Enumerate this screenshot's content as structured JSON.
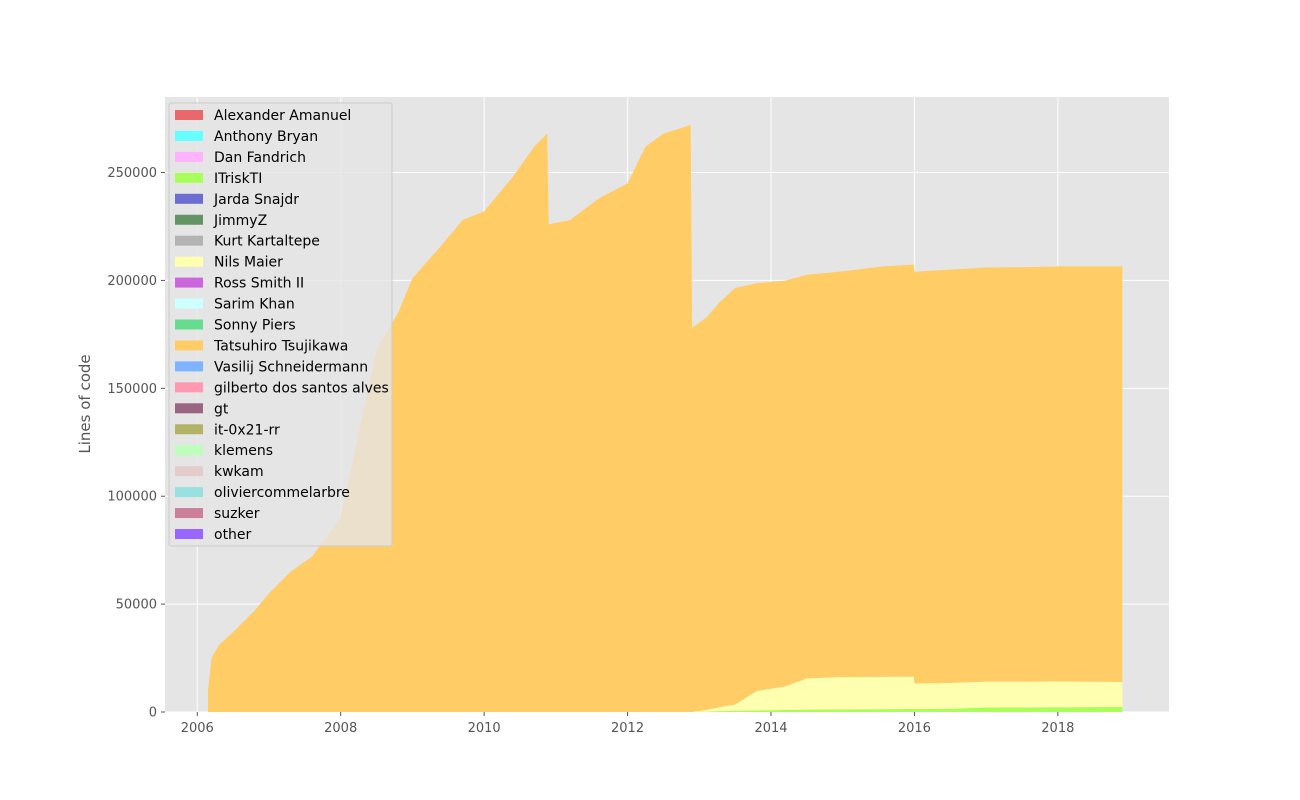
{
  "chart_data": {
    "type": "area",
    "stacked": true,
    "title": "",
    "xlabel": "",
    "ylabel": "Lines of code",
    "xlim": [
      2005.55,
      2019.55
    ],
    "ylim": [
      0,
      285000
    ],
    "xticks": [
      "2006",
      "2008",
      "2010",
      "2012",
      "2014",
      "2016",
      "2018"
    ],
    "yticks": [
      "0",
      "50000",
      "100000",
      "150000",
      "200000",
      "250000"
    ],
    "grid": true,
    "legend_position": "top-left",
    "legend": [
      {
        "name": "Alexander Amanuel",
        "color": "#e8686b"
      },
      {
        "name": "Anthony Bryan",
        "color": "#66ffff"
      },
      {
        "name": "Dan Fandrich",
        "color": "#ffb3ff"
      },
      {
        "name": "ITriskTI",
        "color": "#a8ff5a"
      },
      {
        "name": "Jarda Snajdr",
        "color": "#6c6cd3"
      },
      {
        "name": "JimmyZ",
        "color": "#649466"
      },
      {
        "name": "Kurt Kartaltepe",
        "color": "#b3b3b3"
      },
      {
        "name": "Nils Maier",
        "color": "#ffffb0"
      },
      {
        "name": "Ross Smith II",
        "color": "#cc66dd"
      },
      {
        "name": "Sarim Khan",
        "color": "#ccffff"
      },
      {
        "name": "Sonny Piers",
        "color": "#66dd8e"
      },
      {
        "name": "Tatsuhiro Tsujikawa",
        "color": "#ffcc66"
      },
      {
        "name": "Vasilij Schneidermann",
        "color": "#7fb2ff"
      },
      {
        "name": "gilberto dos santos alves",
        "color": "#ff99b1"
      },
      {
        "name": "gt",
        "color": "#9a6580"
      },
      {
        "name": "it-0x21-rr",
        "color": "#b3b366"
      },
      {
        "name": "klemens",
        "color": "#bbffbb"
      },
      {
        "name": "kwkam",
        "color": "#e4cccc"
      },
      {
        "name": "oliviercommelarbre",
        "color": "#99e1e1"
      },
      {
        "name": "suzker",
        "color": "#cc7f99"
      },
      {
        "name": "other",
        "color": "#9966ff"
      }
    ],
    "x": [
      2006.15,
      2006.2,
      2006.3,
      2006.5,
      2006.8,
      2007.0,
      2007.3,
      2007.6,
      2008.0,
      2008.5,
      2008.8,
      2009.0,
      2009.4,
      2009.7,
      2010.0,
      2010.4,
      2010.7,
      2010.88,
      2010.9,
      2011.2,
      2011.6,
      2012.0,
      2012.25,
      2012.5,
      2012.88,
      2012.9,
      2013.1,
      2013.3,
      2013.5,
      2013.8,
      2014.2,
      2014.5,
      2015.0,
      2015.5,
      2015.99,
      2016.0,
      2016.5,
      2017.0,
      2017.5,
      2018.0,
      2018.9
    ],
    "series": [
      {
        "name": "ITriskTI",
        "values": [
          0,
          0,
          0,
          0,
          0,
          0,
          0,
          0,
          0,
          0,
          0,
          0,
          0,
          0,
          0,
          0,
          0,
          0,
          0,
          0,
          0,
          0,
          0,
          0,
          0,
          0,
          200,
          400,
          500,
          700,
          900,
          1100,
          1200,
          1300,
          1400,
          1400,
          1500,
          2100,
          2100,
          2200,
          2300
        ]
      },
      {
        "name": "Nils Maier",
        "values": [
          0,
          0,
          0,
          0,
          0,
          0,
          0,
          0,
          0,
          0,
          0,
          0,
          0,
          0,
          0,
          0,
          0,
          0,
          0,
          0,
          0,
          0,
          0,
          0,
          0,
          0,
          700,
          2000,
          3000,
          9000,
          11000,
          14500,
          15000,
          15000,
          15000,
          11800,
          12000,
          12000,
          12000,
          12000,
          11600
        ]
      },
      {
        "name": "Tatsuhiro Tsujikawa",
        "values": [
          10000,
          25000,
          31000,
          37000,
          47000,
          55000,
          65000,
          72000,
          90000,
          168000,
          185000,
          201000,
          216000,
          228000,
          232000,
          248000,
          262000,
          268000,
          226000,
          228000,
          238000,
          245000,
          262000,
          268000,
          272000,
          178000,
          182000,
          188000,
          193000,
          189000,
          188000,
          187000,
          188000,
          190000,
          191000,
          190800,
          191500,
          191900,
          192000,
          192300,
          192600
        ]
      },
      {
        "name": "kwkam",
        "values": [
          0,
          0,
          0,
          0,
          0,
          0,
          0,
          0,
          0,
          0,
          0,
          0,
          0,
          0,
          0,
          0,
          0,
          0,
          0,
          0,
          0,
          0,
          0,
          0,
          0,
          0,
          0,
          0,
          0,
          0,
          0,
          0,
          0,
          0,
          0,
          0,
          0,
          0,
          0,
          0,
          0
        ]
      }
    ]
  }
}
